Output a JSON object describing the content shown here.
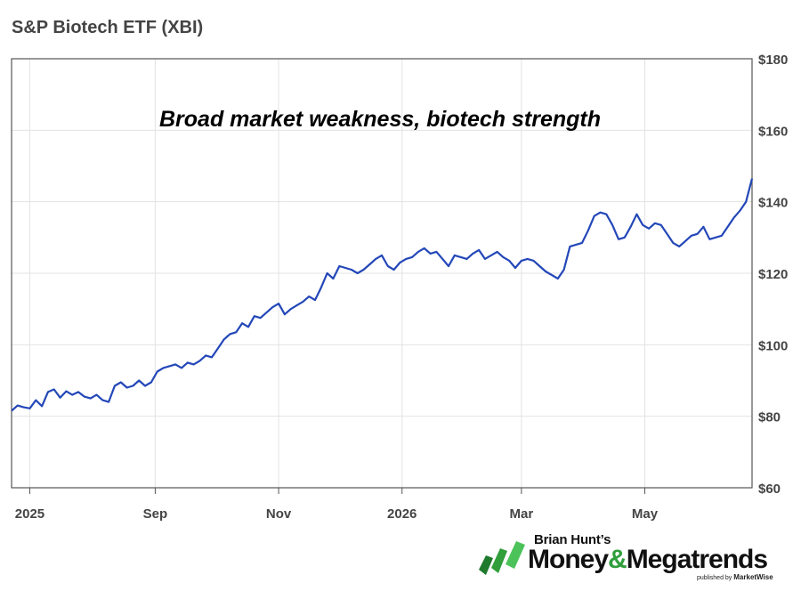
{
  "title": "S&P Biotech ETF (XBI)",
  "annotation": "Broad market weakness, biotech strength",
  "logo": {
    "line1": "Brian Hunt’s",
    "word1": "Money",
    "amp": "&",
    "word2": "Megatrends",
    "published_by": "published by",
    "publisher": "MarketWise",
    "icon": "green-bars-icon"
  },
  "colors": {
    "line": "#2347b8",
    "grid": "#e3e3e3",
    "text": "#444444",
    "brand_green": "#2f9e3b"
  },
  "chart_data": {
    "type": "line",
    "title": "S&P Biotech ETF (XBI)",
    "annotation": "Broad market weakness, biotech strength",
    "ylim": [
      60,
      180
    ],
    "y_ticks": [
      60,
      80,
      100,
      120,
      140,
      160,
      180
    ],
    "y_tick_labels": [
      "$60",
      "$80",
      "$100",
      "$120",
      "$140",
      "$160",
      "$180"
    ],
    "y_axis_position": "right",
    "x_tick_labels": [
      "2025",
      "Sep",
      "Nov",
      "2026",
      "Mar",
      "May"
    ],
    "x_ticks": [
      "2025-07-01",
      "2025-09-01",
      "2025-11-01",
      "2026-01-01",
      "2026-03-01",
      "2026-05-01"
    ],
    "xlim": [
      "2025-06-22",
      "2026-06-23"
    ],
    "grid": true,
    "series": [
      {
        "x": [
          "2025-06-22",
          "2025-06-25",
          "2025-06-28",
          "2025-07-01",
          "2025-07-04",
          "2025-07-07",
          "2025-07-10",
          "2025-07-13",
          "2025-07-16",
          "2025-07-19",
          "2025-07-22",
          "2025-07-25",
          "2025-07-28",
          "2025-07-31",
          "2025-08-03",
          "2025-08-06",
          "2025-08-09",
          "2025-08-12",
          "2025-08-15",
          "2025-08-18",
          "2025-08-21",
          "2025-08-24",
          "2025-08-27",
          "2025-08-30",
          "2025-09-02",
          "2025-09-05",
          "2025-09-08",
          "2025-09-11",
          "2025-09-14",
          "2025-09-17",
          "2025-09-20",
          "2025-09-23",
          "2025-09-26",
          "2025-09-29",
          "2025-10-02",
          "2025-10-05",
          "2025-10-08",
          "2025-10-11",
          "2025-10-14",
          "2025-10-17",
          "2025-10-20",
          "2025-10-23",
          "2025-10-26",
          "2025-10-29",
          "2025-11-01",
          "2025-11-04",
          "2025-11-07",
          "2025-11-10",
          "2025-11-13",
          "2025-11-16",
          "2025-11-19",
          "2025-11-22",
          "2025-11-25",
          "2025-11-28",
          "2025-12-01",
          "2025-12-04",
          "2025-12-07",
          "2025-12-10",
          "2025-12-13",
          "2025-12-16",
          "2025-12-19",
          "2025-12-22",
          "2025-12-25",
          "2025-12-28",
          "2025-12-31",
          "2026-01-03",
          "2026-01-06",
          "2026-01-09",
          "2026-01-12",
          "2026-01-15",
          "2026-01-18",
          "2026-01-21",
          "2026-01-24",
          "2026-01-27",
          "2026-01-30",
          "2026-02-02",
          "2026-02-05",
          "2026-02-08",
          "2026-02-11",
          "2026-02-14",
          "2026-02-17",
          "2026-02-20",
          "2026-02-23",
          "2026-02-26",
          "2026-03-01",
          "2026-03-04",
          "2026-03-07",
          "2026-03-10",
          "2026-03-13",
          "2026-03-16",
          "2026-03-19",
          "2026-03-22",
          "2026-03-25",
          "2026-03-28",
          "2026-03-31",
          "2026-04-03",
          "2026-04-06",
          "2026-04-09",
          "2026-04-12",
          "2026-04-15",
          "2026-04-18",
          "2026-04-21",
          "2026-04-24",
          "2026-04-27",
          "2026-04-30",
          "2026-05-03",
          "2026-05-06",
          "2026-05-09",
          "2026-05-12",
          "2026-05-15",
          "2026-05-18",
          "2026-05-21",
          "2026-05-24",
          "2026-05-27",
          "2026-05-30",
          "2026-06-02",
          "2026-06-05",
          "2026-06-08",
          "2026-06-11",
          "2026-06-14",
          "2026-06-17",
          "2026-06-20",
          "2026-06-23"
        ],
        "values": [
          81.5,
          83.0,
          82.5,
          82.2,
          84.5,
          82.8,
          86.8,
          87.5,
          85.2,
          87.0,
          86.0,
          86.8,
          85.5,
          85.0,
          86.0,
          84.5,
          84.0,
          88.5,
          89.5,
          88.0,
          88.5,
          90.0,
          88.5,
          89.5,
          92.5,
          93.5,
          94.0,
          94.5,
          93.5,
          95.0,
          94.5,
          95.5,
          97.0,
          96.5,
          99.0,
          101.5,
          103.0,
          103.5,
          106.0,
          105.0,
          108.0,
          107.5,
          109.0,
          110.5,
          111.5,
          108.5,
          110.0,
          111.0,
          112.0,
          113.5,
          112.5,
          116.0,
          120.0,
          118.5,
          122.0,
          121.5,
          121.0,
          120.0,
          121.0,
          122.5,
          124.0,
          125.0,
          122.0,
          121.0,
          123.0,
          124.0,
          124.5,
          126.0,
          127.0,
          125.5,
          126.0,
          124.0,
          122.0,
          125.0,
          124.5,
          124.0,
          125.5,
          126.5,
          124.0,
          125.0,
          126.0,
          124.5,
          123.5,
          121.5,
          123.5,
          124.0,
          123.5,
          122.0,
          120.5,
          119.5,
          118.5,
          121.0,
          127.5,
          128.0,
          128.5,
          132.0,
          136.0,
          137.0,
          136.5,
          133.5,
          129.5,
          130.0,
          133.0,
          136.5,
          133.5,
          132.5,
          134.0,
          133.5,
          131.0,
          128.5,
          127.5,
          129.0,
          130.5,
          131.0,
          133.0,
          129.5,
          130.0,
          130.5,
          133.0,
          135.5,
          137.5,
          140.0,
          146.5
        ]
      }
    ]
  }
}
